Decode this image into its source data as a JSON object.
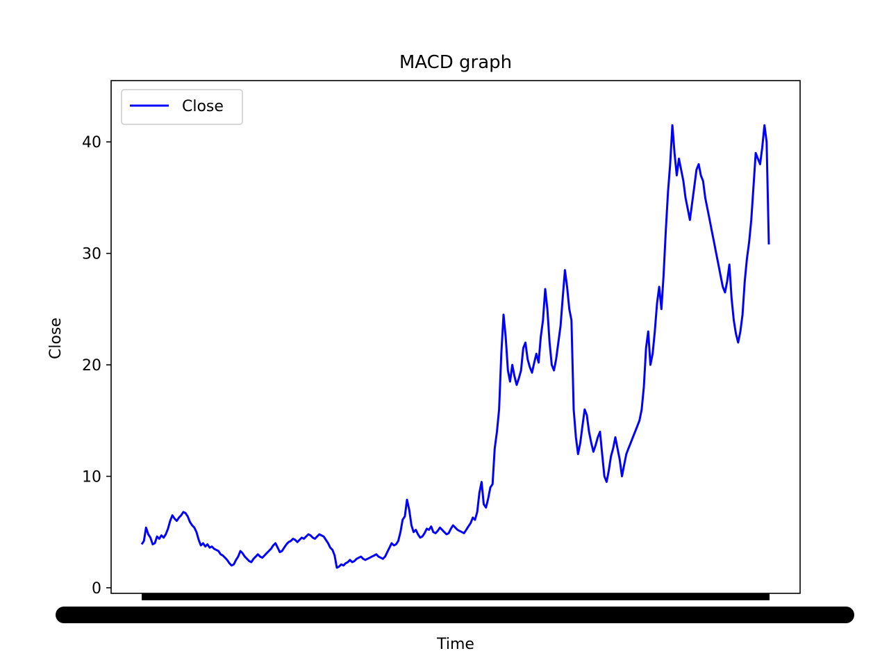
{
  "chart_data": {
    "type": "line",
    "title": "MACD graph",
    "xlabel": "Time",
    "ylabel": "Close",
    "ylim": [
      -0.5,
      45.5
    ],
    "yticks": [
      0,
      10,
      20,
      30,
      40
    ],
    "grid": false,
    "legend_position": "upper-left",
    "x_tick_labels_note": "overlapping dense date tick labels rendered as a solid black band",
    "series": [
      {
        "name": "Close",
        "color": "#0000ff",
        "values": [
          3.9,
          4.2,
          5.4,
          4.8,
          4.5,
          3.9,
          4.0,
          4.6,
          4.4,
          4.7,
          4.5,
          4.8,
          5.3,
          6.0,
          6.5,
          6.2,
          6.0,
          6.3,
          6.5,
          6.8,
          6.7,
          6.4,
          5.9,
          5.6,
          5.4,
          5.0,
          4.3,
          3.8,
          4.0,
          3.7,
          3.9,
          3.6,
          3.7,
          3.5,
          3.4,
          3.3,
          3.0,
          2.9,
          2.7,
          2.5,
          2.2,
          2.0,
          2.1,
          2.5,
          2.8,
          3.3,
          3.1,
          2.8,
          2.6,
          2.4,
          2.3,
          2.6,
          2.8,
          3.0,
          2.8,
          2.7,
          2.9,
          3.1,
          3.3,
          3.5,
          3.8,
          4.0,
          3.6,
          3.2,
          3.3,
          3.6,
          3.9,
          4.1,
          4.2,
          4.4,
          4.3,
          4.1,
          4.3,
          4.5,
          4.4,
          4.6,
          4.8,
          4.7,
          4.5,
          4.4,
          4.6,
          4.8,
          4.7,
          4.6,
          4.3,
          4.0,
          3.6,
          3.4,
          2.9,
          1.8,
          1.9,
          2.1,
          2.0,
          2.2,
          2.3,
          2.5,
          2.3,
          2.4,
          2.6,
          2.7,
          2.8,
          2.6,
          2.5,
          2.6,
          2.7,
          2.8,
          2.9,
          3.0,
          2.8,
          2.7,
          2.6,
          2.8,
          3.2,
          3.6,
          4.0,
          3.8,
          3.9,
          4.2,
          5.0,
          6.1,
          6.4,
          7.9,
          7.0,
          5.6,
          5.0,
          5.2,
          4.8,
          4.5,
          4.6,
          4.9,
          5.3,
          5.2,
          5.5,
          5.0,
          4.9,
          5.1,
          5.4,
          5.2,
          5.0,
          4.8,
          4.9,
          5.3,
          5.6,
          5.4,
          5.2,
          5.1,
          5.0,
          4.9,
          5.2,
          5.5,
          5.8,
          6.3,
          6.1,
          6.8,
          8.5,
          9.5,
          7.5,
          7.2,
          8.0,
          9.0,
          9.3,
          12.5,
          14.0,
          16.0,
          21.0,
          24.5,
          22.5,
          19.5,
          18.5,
          20.0,
          19.0,
          18.2,
          18.8,
          19.5,
          21.5,
          22.0,
          20.5,
          19.8,
          19.3,
          20.2,
          21.0,
          20.2,
          22.5,
          24.0,
          26.8,
          25.0,
          22.0,
          20.0,
          19.5,
          20.5,
          22.0,
          23.5,
          26.0,
          28.5,
          27.0,
          25.0,
          24.0,
          16.0,
          13.5,
          12.0,
          13.0,
          14.5,
          16.0,
          15.5,
          14.0,
          13.0,
          12.2,
          12.8,
          13.5,
          14.0,
          12.0,
          10.0,
          9.5,
          10.5,
          11.8,
          12.5,
          13.5,
          12.5,
          11.5,
          10.0,
          11.0,
          12.0,
          12.5,
          13.0,
          13.5,
          14.0,
          14.5,
          15.0,
          16.0,
          18.0,
          21.5,
          23.0,
          20.0,
          21.0,
          23.0,
          25.5,
          27.0,
          25.0,
          28.0,
          32.0,
          35.5,
          38.0,
          41.5,
          39.0,
          37.0,
          38.5,
          37.5,
          36.5,
          35.0,
          34.0,
          33.0,
          34.5,
          36.0,
          37.5,
          38.0,
          37.0,
          36.5,
          35.0,
          34.0,
          33.0,
          32.0,
          31.0,
          30.0,
          29.0,
          28.0,
          27.0,
          26.5,
          27.5,
          29.0,
          26.0,
          24.0,
          22.8,
          22.0,
          23.0,
          24.5,
          27.5,
          29.5,
          31.0,
          33.0,
          36.0,
          39.0,
          38.5,
          38.0,
          39.5,
          41.5,
          40.0,
          30.8
        ]
      }
    ]
  }
}
